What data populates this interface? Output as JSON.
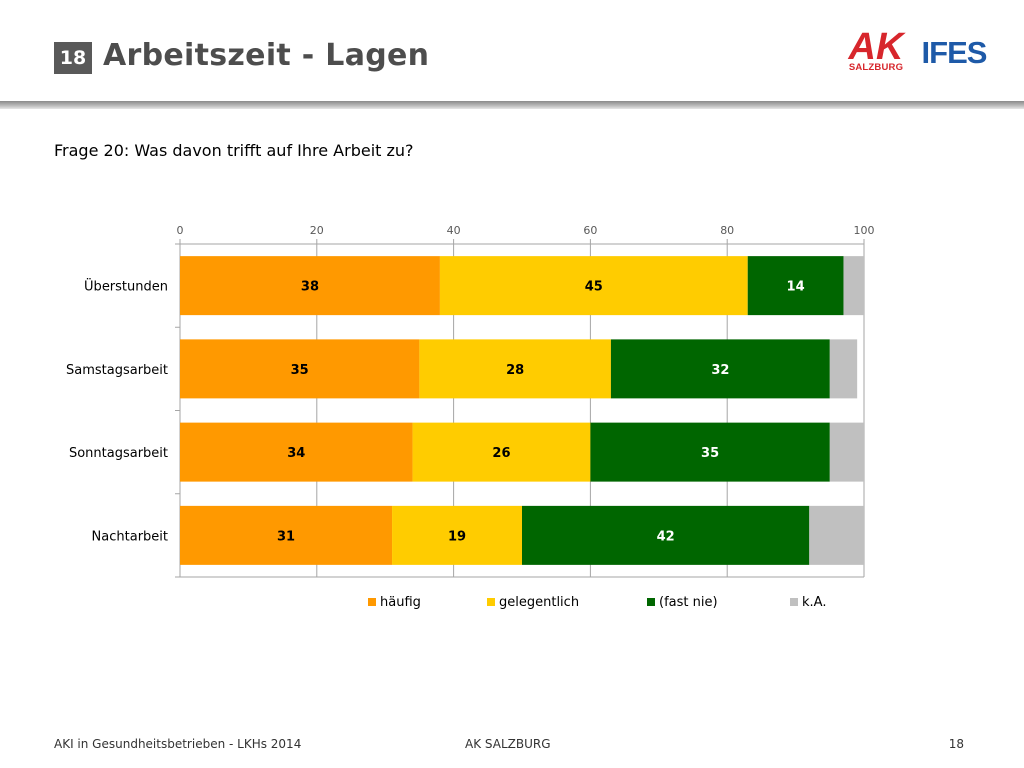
{
  "slide": {
    "number": "18",
    "title": "Arbeitszeit - Lagen",
    "question": "Frage 20: Was davon trifft auf Ihre Arbeit zu?"
  },
  "logos": {
    "ak_text": "AK",
    "ak_subtitle": "SALZBURG",
    "ifes_text": "IFES",
    "ak_color": "#d7262c",
    "ifes_color": "#1e5aa8"
  },
  "footer": {
    "left": "AKI in Gesundheitsbetrieben - LKHs 2014",
    "center": "AK SALZBURG",
    "right": "18"
  },
  "chart_data": {
    "type": "bar",
    "orientation": "horizontal",
    "stacked": true,
    "categories": [
      "Überstunden",
      "Samstagsarbeit",
      "Sonntagsarbeit",
      "Nachtarbeit"
    ],
    "series": [
      {
        "name": "häufig",
        "color": "#ff9900",
        "values": [
          38,
          35,
          34,
          31
        ]
      },
      {
        "name": "gelegentlich",
        "color": "#ffcc00",
        "values": [
          45,
          28,
          26,
          19
        ]
      },
      {
        "name": "(fast nie)",
        "color": "#006600",
        "values": [
          14,
          32,
          35,
          42
        ]
      },
      {
        "name": "k.A.",
        "color": "#c0c0c0",
        "values": [
          3,
          4,
          5,
          8
        ]
      }
    ],
    "data_labels_shown": [
      true,
      true,
      true,
      false
    ],
    "xlim": [
      0,
      100
    ],
    "xticks": [
      0,
      20,
      40,
      60,
      80,
      100
    ],
    "x_axis_position": "top",
    "grid": true,
    "legend": "bottom"
  }
}
